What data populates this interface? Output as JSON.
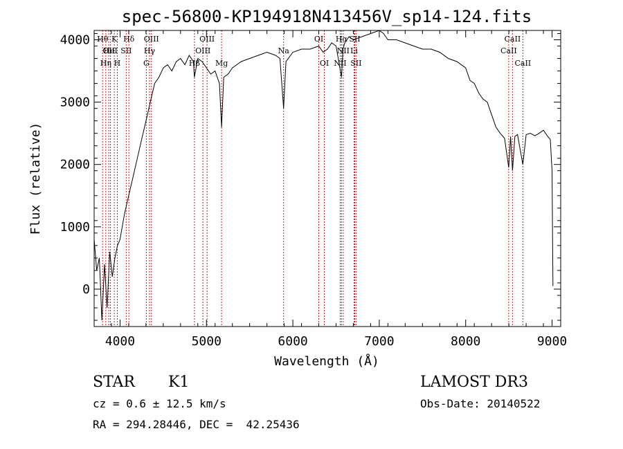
{
  "chart_data": {
    "type": "line",
    "title": "spec-56800-KP194918N413456V_sp14-124.fits",
    "xlabel": "Wavelength (Å)",
    "ylabel": "Flux (relative)",
    "xlim": [
      3700,
      9100
    ],
    "ylim": [
      -600,
      4150
    ],
    "xticks": [
      4000,
      5000,
      6000,
      7000,
      8000,
      9000
    ],
    "yticks": [
      0,
      1000,
      2000,
      3000,
      4000
    ],
    "grid": false,
    "series": [
      {
        "x": [
          3700,
          3730,
          3760,
          3790,
          3820,
          3850,
          3880,
          3910,
          3940,
          3970,
          4000,
          4050,
          4100,
          4150,
          4200,
          4250,
          4300,
          4350,
          4400,
          4450,
          4500,
          4550,
          4600,
          4650,
          4700,
          4750,
          4800,
          4850,
          4860,
          4900,
          4950,
          5000,
          5050,
          5100,
          5150,
          5175,
          5200,
          5250,
          5300,
          5350,
          5400,
          5500,
          5600,
          5700,
          5800,
          5850,
          5893,
          5920,
          6000,
          6100,
          6200,
          6300,
          6350,
          6400,
          6450,
          6500,
          6563,
          6580,
          6600,
          6650,
          6700,
          6800,
          6900,
          7000,
          7050,
          7100,
          7200,
          7300,
          7400,
          7500,
          7600,
          7700,
          7800,
          7900,
          8000,
          8050,
          8100,
          8150,
          8200,
          8250,
          8300,
          8350,
          8400,
          8450,
          8498,
          8520,
          8542,
          8570,
          8600,
          8662,
          8700,
          8750,
          8800,
          8850,
          8900,
          8950,
          8980,
          9000,
          9010
        ],
        "y": [
          800,
          300,
          500,
          -500,
          400,
          -300,
          600,
          200,
          500,
          700,
          800,
          1200,
          1500,
          1800,
          2100,
          2400,
          2700,
          3000,
          3300,
          3400,
          3550,
          3600,
          3500,
          3650,
          3700,
          3600,
          3750,
          3650,
          3400,
          3700,
          3650,
          3550,
          3450,
          3500,
          3300,
          2600,
          3400,
          3450,
          3550,
          3600,
          3650,
          3700,
          3750,
          3800,
          3750,
          3700,
          2900,
          3650,
          3800,
          3850,
          3850,
          3900,
          3800,
          3850,
          3950,
          3900,
          3400,
          3850,
          3950,
          4050,
          4000,
          4050,
          4100,
          4150,
          4100,
          4000,
          4000,
          3950,
          3900,
          3850,
          3850,
          3800,
          3700,
          3650,
          3550,
          3350,
          3300,
          3150,
          3050,
          3000,
          2800,
          2600,
          2500,
          2420,
          1950,
          2450,
          1900,
          2450,
          2480,
          2000,
          2480,
          2500,
          2460,
          2500,
          2550,
          2450,
          2400,
          1900,
          50
        ]
      }
    ],
    "line_markers": [
      {
        "wavelength": 3798,
        "label": "Hθ",
        "row": 1
      },
      {
        "wavelength": 3835,
        "label": "Hη",
        "row": 3
      },
      {
        "wavelength": 3869,
        "label": "OII",
        "row": 2
      },
      {
        "wavelength": 3889,
        "label": "HeI",
        "row": 2
      },
      {
        "wavelength": 3933,
        "label": "K",
        "row": 1
      },
      {
        "wavelength": 3968,
        "label": "H",
        "row": 3
      },
      {
        "wavelength": 4071,
        "label": "SII",
        "row": 2
      },
      {
        "wavelength": 4102,
        "label": "Hδ",
        "row": 1
      },
      {
        "wavelength": 4304,
        "label": "G",
        "row": 3
      },
      {
        "wavelength": 4341,
        "label": "Hγ",
        "row": 2
      },
      {
        "wavelength": 4363,
        "label": "OIII",
        "row": 1
      },
      {
        "wavelength": 4861,
        "label": "Hβ",
        "row": 3
      },
      {
        "wavelength": 4959,
        "label": "OIII",
        "row": 2
      },
      {
        "wavelength": 5007,
        "label": "OIII",
        "row": 1
      },
      {
        "wavelength": 5175,
        "label": "Mg",
        "row": 3
      },
      {
        "wavelength": 5893,
        "label": "Na",
        "row": 2
      },
      {
        "wavelength": 6300,
        "label": "OI",
        "row": 1
      },
      {
        "wavelength": 6364,
        "label": "OI",
        "row": 3
      },
      {
        "wavelength": 6548,
        "label": "NII",
        "row": 3
      },
      {
        "wavelength": 6563,
        "label": "Hα",
        "row": 1
      },
      {
        "wavelength": 6583,
        "label": "NII",
        "row": 2
      },
      {
        "wavelength": 6708,
        "label": "Li",
        "row": 2
      },
      {
        "wavelength": 6716,
        "label": "SII",
        "row": 1
      },
      {
        "wavelength": 6731,
        "label": "SII",
        "row": 3
      },
      {
        "wavelength": 8498,
        "label": "CaII",
        "row": 2
      },
      {
        "wavelength": 8542,
        "label": "CaII",
        "row": 1
      },
      {
        "wavelength": 8662,
        "label": "CaII",
        "row": 3
      }
    ]
  },
  "info": {
    "object_class": "STAR",
    "subclass": "K1",
    "survey": "LAMOST DR3",
    "redshift": "cz = 0.6 ± 12.5 km/s",
    "obs_date": "Obs-Date: 20140522",
    "coords": "RA = 294.28446, DEC =  42.25436"
  }
}
